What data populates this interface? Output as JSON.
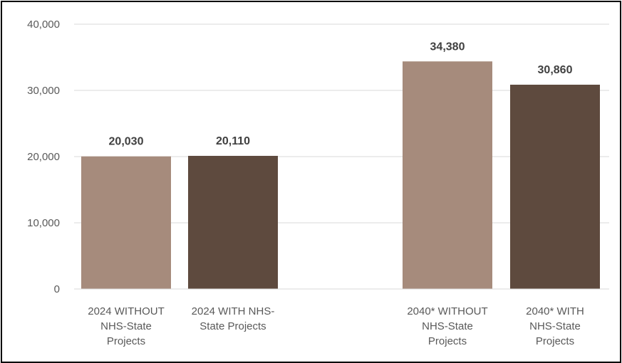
{
  "chart_data": {
    "type": "bar",
    "categories": [
      [
        "2024 WITHOUT",
        "NHS-State",
        "Projects"
      ],
      [
        "2024 WITH NHS-",
        "State Projects"
      ],
      [
        "2040* WITHOUT",
        "NHS-State",
        "Projects"
      ],
      [
        "2040* WITH",
        "NHS-State",
        "Projects"
      ]
    ],
    "values": [
      20030,
      20110,
      34380,
      30860
    ],
    "data_labels": [
      "20,030",
      "20,110",
      "34,380",
      "30,860"
    ],
    "bar_colors": [
      "#a68b7c",
      "#5e4a3e",
      "#a68b7c",
      "#5e4a3e"
    ],
    "ylim": [
      0,
      40000
    ],
    "yticks": [
      0,
      10000,
      20000,
      30000,
      40000
    ],
    "ytick_labels": [
      "0",
      "10,000",
      "20,000",
      "30,000",
      "40,000"
    ],
    "title": "",
    "xlabel": "",
    "ylabel": "",
    "grid": true,
    "gridline_color": "#d9d9d9"
  }
}
